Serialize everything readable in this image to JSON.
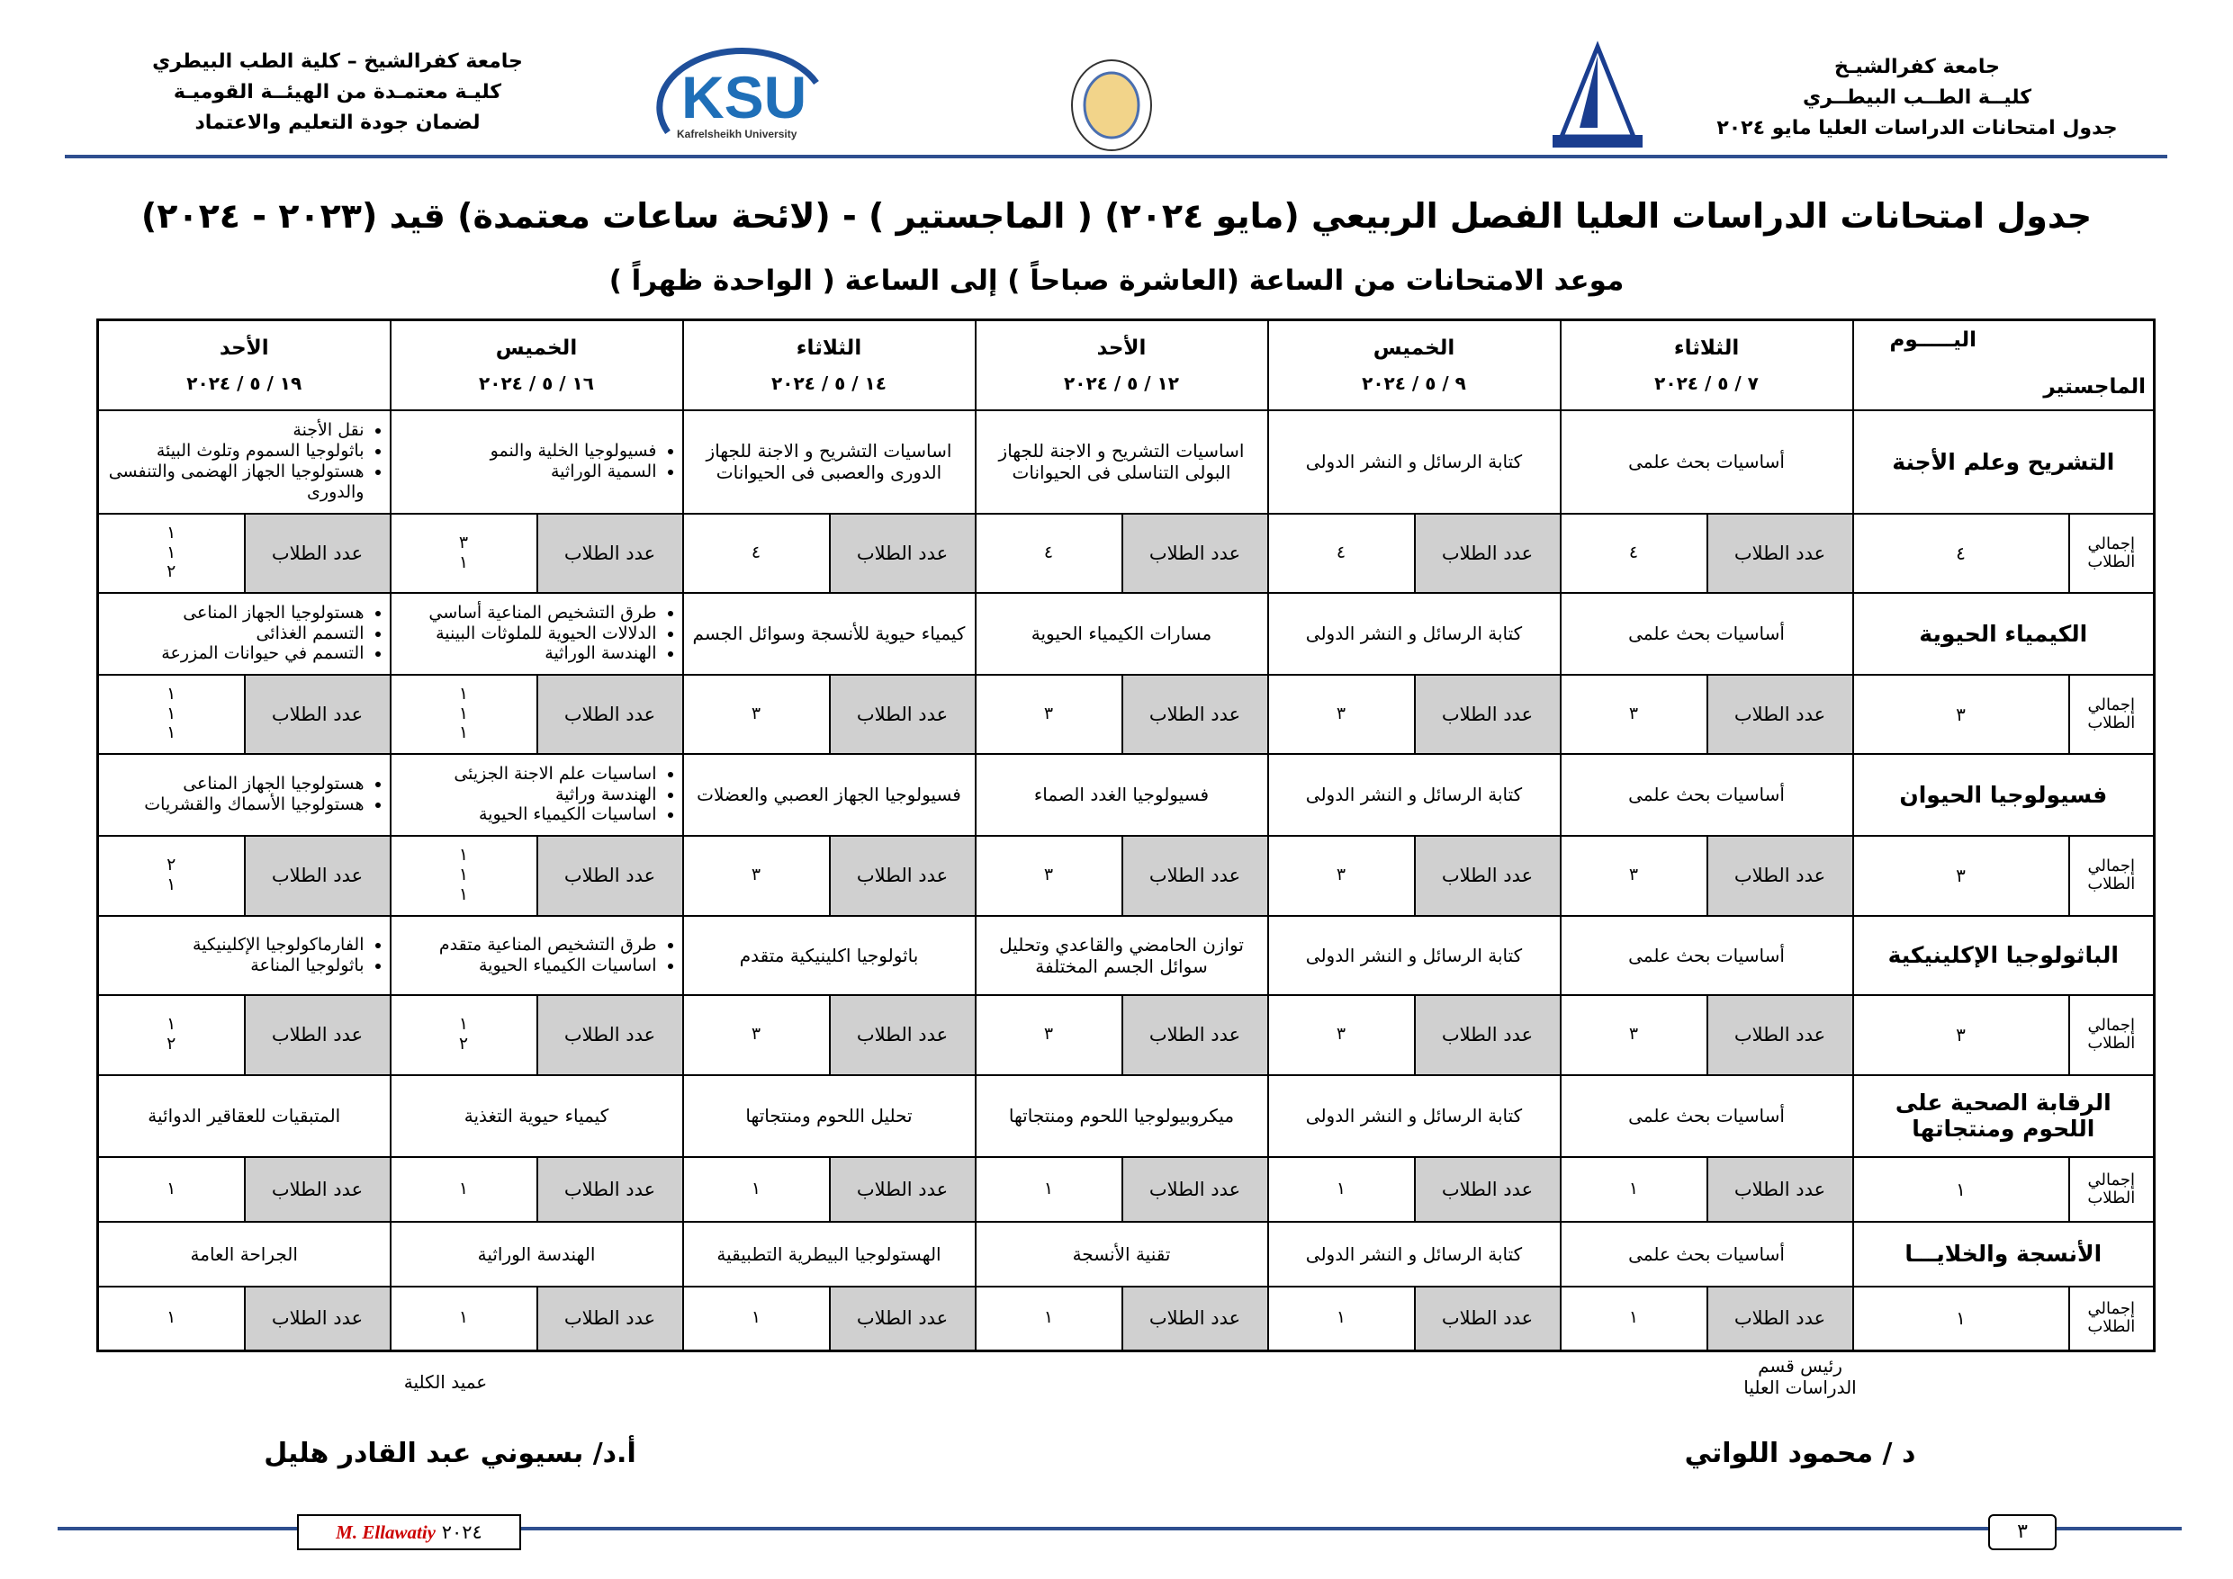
{
  "header": {
    "right_lines": [
      "جامعة كفرالشيـخ",
      "كليــة الطــب البيطــري",
      "جدول امتحانات الدراسات العليا مايو ٢٠٢٤"
    ],
    "left_lines": [
      "جامعة كفرالشيخ – كلية الطب البيطري",
      "كليـة معتمـدة من الهيئــة القوميـة",
      "لضمان جودة التعليم والاعتماد"
    ],
    "logo_text": "KSU",
    "logo_subtext": "Kafrelsheikh University"
  },
  "title": "جدول امتحانات الدراسات العليا الفصل الربيعي (مايو ٢٠٢٤) ( الماجستير ) - (لائحة ساعات معتمدة) قيد (٢٠٢٣ - ٢٠٢٤)",
  "subtitle": "موعد الامتحانات من الساعة (العاشرة صباحاً ) إلى الساعة ( الواحدة ظهراً )",
  "table": {
    "corner_day": "اليـــــوم",
    "corner_program": "الماجستير",
    "total_label": "إجمالي الطلاب",
    "count_label": "عدد الطلاب",
    "days": [
      {
        "name": "الثلاثاء",
        "date": "٧ / ٥ / ٢٠٢٤"
      },
      {
        "name": "الخميس",
        "date": "٩ / ٥ / ٢٠٢٤"
      },
      {
        "name": "الأحد",
        "date": "١٢ / ٥ / ٢٠٢٤"
      },
      {
        "name": "الثلاثاء",
        "date": "١٤ / ٥ / ٢٠٢٤"
      },
      {
        "name": "الخميس",
        "date": "١٦ / ٥ / ٢٠٢٤"
      },
      {
        "name": "الأحد",
        "date": "١٩ / ٥ / ٢٠٢٤"
      }
    ],
    "programs": [
      {
        "name": "التشريح وعلم الأجنة",
        "total": "٤",
        "exams": [
          "أساسيات بحث علمى",
          "كتابة الرسائل و النشر الدولى",
          "اساسيات التشريح و الاجنة للجهاز البولى التناسلى فى الحيوانات",
          "اساسيات التشريح و الاجنة للجهاز الدورى والعصبى فى الحيوانات",
          [
            "فسيولوجيا الخلية والنمو",
            "السمية الوراثية"
          ],
          [
            "نقل الأجنة",
            "باثولوجيا السموم وتلوث البيئة",
            "هستولوجيا الجهاز الهضمى والتنفسى والدورى"
          ]
        ],
        "counts": [
          [
            "٤"
          ],
          [
            "٤"
          ],
          [
            "٤"
          ],
          [
            "٤"
          ],
          [
            "٣",
            "١"
          ],
          [
            "١",
            "١",
            "٢"
          ]
        ]
      },
      {
        "name": "الكيمياء الحيوية",
        "total": "٣",
        "exams": [
          "أساسيات بحث علمى",
          "كتابة الرسائل و النشر الدولى",
          "مسارات الكيمياء الحيوية",
          "كيمياء حيوية للأنسجة وسوائل الجسم",
          [
            "طرق التشخيص المناعية أساسي",
            "الدلالات الحيوية للملوثات البينية",
            "الهندسة الوراثية"
          ],
          [
            "هستولوجيا الجهاز المناعى",
            "التسمم الغذائى",
            "التسمم في حيوانات المزرعة"
          ]
        ],
        "counts": [
          [
            "٣"
          ],
          [
            "٣"
          ],
          [
            "٣"
          ],
          [
            "٣"
          ],
          [
            "١",
            "١",
            "١"
          ],
          [
            "١",
            "١",
            "١"
          ]
        ]
      },
      {
        "name": "فسيولوجيا الحيوان",
        "total": "٣",
        "exams": [
          "أساسيات بحث علمى",
          "كتابة الرسائل و النشر الدولى",
          "فسيولوجيا الغدد الصماء",
          "فسيولوجيا الجهاز العصبي والعضلات",
          [
            "اساسيات علم الاجنة الجزيئى",
            "الهندسة وراثية",
            "اساسيات الكيمياء الحيوية"
          ],
          [
            "هستولوجيا الجهاز المناعى",
            "هستولوجيا الأسماك والقشريات"
          ]
        ],
        "counts": [
          [
            "٣"
          ],
          [
            "٣"
          ],
          [
            "٣"
          ],
          [
            "٣"
          ],
          [
            "١",
            "١",
            "١"
          ],
          [
            "٢",
            "١"
          ]
        ]
      },
      {
        "name": "الباثولوجيا الإكلينيكية",
        "total": "٣",
        "exams": [
          "أساسيات بحث علمى",
          "كتابة الرسائل و النشر الدولى",
          "توازن الحامضي والقاعدي وتحليل سوائل الجسم المختلفة",
          "باثولوجيا اكلينيكية متقدم",
          [
            "طرق التشخيص المناعية متقدم",
            "اساسيات الكيمياء الحيوية"
          ],
          [
            "الفارماكولوجيا الإكلينيكية",
            "باثولوجيا المناعة"
          ]
        ],
        "counts": [
          [
            "٣"
          ],
          [
            "٣"
          ],
          [
            "٣"
          ],
          [
            "٣"
          ],
          [
            "١",
            "٢"
          ],
          [
            "١",
            "٢"
          ]
        ]
      },
      {
        "name": "الرقابة الصحية على اللحوم ومنتجاتها",
        "total": "١",
        "exams": [
          "أساسيات بحث علمى",
          "كتابة الرسائل و النشر الدولى",
          "ميكروبيولوجيا اللحوم ومنتجاتها",
          "تحليل اللحوم ومنتجاتها",
          "كيمياء حيوية التغذية",
          "المتبقيات للعقاقير الدوائية"
        ],
        "counts": [
          [
            "١"
          ],
          [
            "١"
          ],
          [
            "١"
          ],
          [
            "١"
          ],
          [
            "١"
          ],
          [
            "١"
          ]
        ]
      },
      {
        "name": "الأنسجة والخلايـــا",
        "total": "١",
        "exams": [
          "أساسيات بحث علمى",
          "كتابة الرسائل و النشر الدولى",
          "تقنية الأنسجة",
          "الهستولوجيا البيطرية التطبيقية",
          "الهندسة الوراثية",
          "الجراحة العامة"
        ],
        "counts": [
          [
            "١"
          ],
          [
            "١"
          ],
          [
            "١"
          ],
          [
            "١"
          ],
          [
            "١"
          ],
          [
            "١"
          ]
        ]
      }
    ]
  },
  "signatures": {
    "right_role": [
      "رئيس قسم",
      "الدراسات العليا"
    ],
    "right_name": "د / محمود اللواتي",
    "left_role": "عميد الكلية",
    "left_name": "أ.د/ بسيوني عبد القادر هليل"
  },
  "footer": {
    "author": "M. Ellawatiy",
    "year": "٢٠٢٤",
    "page": "٣"
  }
}
